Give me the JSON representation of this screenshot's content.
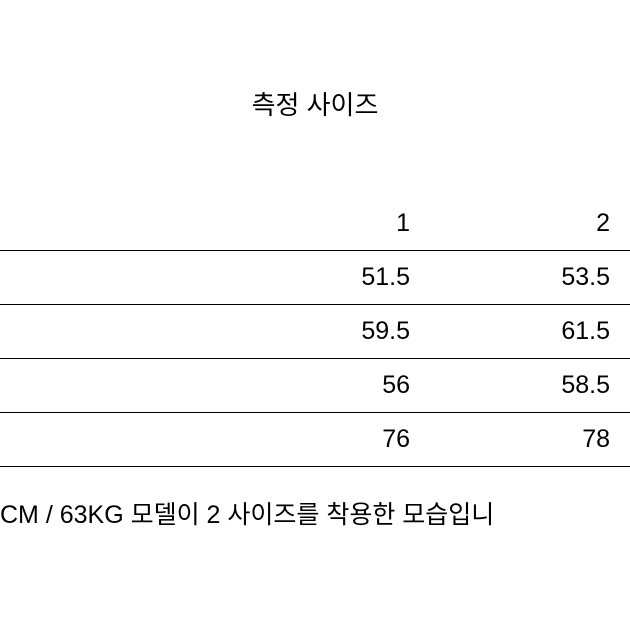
{
  "title": "측정 사이즈",
  "table": {
    "type": "table",
    "columns": [
      "1",
      "2"
    ],
    "rows": [
      [
        "51.5",
        "53.5"
      ],
      [
        "59.5",
        "61.5"
      ],
      [
        "56",
        "58.5"
      ],
      [
        "76",
        "78"
      ]
    ],
    "border_color": "#000000",
    "font_size": 25,
    "text_color": "#000000",
    "background_color": "#ffffff",
    "col_alignment": [
      "right",
      "right"
    ]
  },
  "footer_note": "CM / 63KG 모델이 2 사이즈를 착용한 모습입니"
}
